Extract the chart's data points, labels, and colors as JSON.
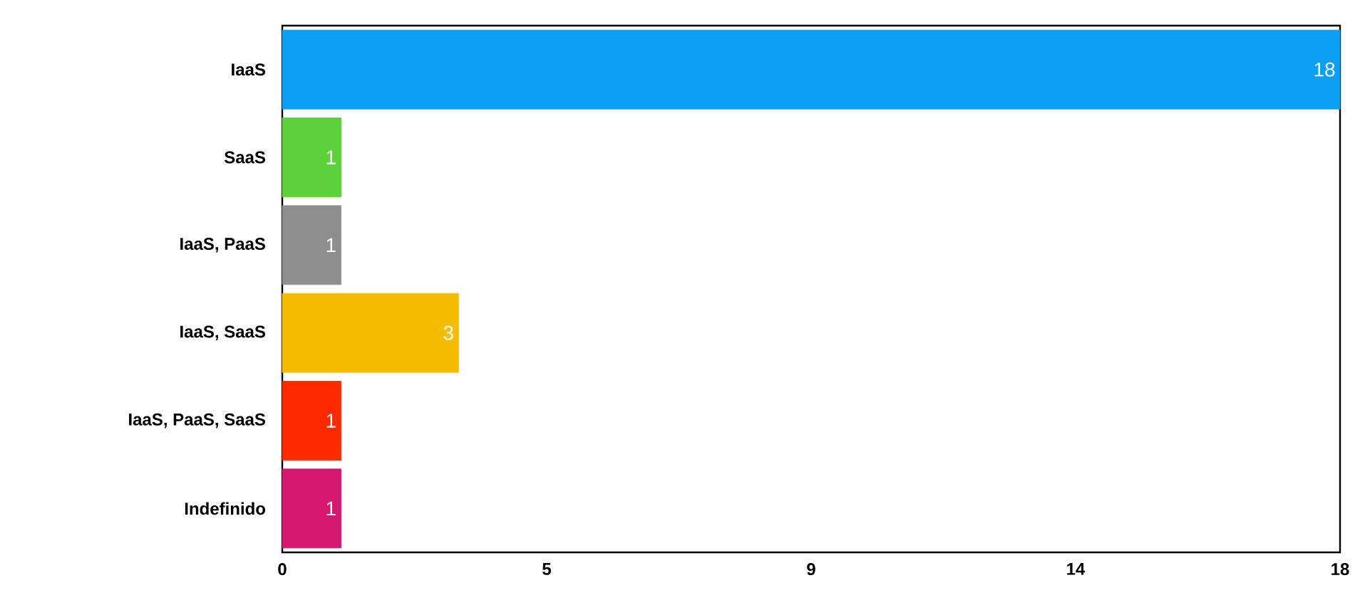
{
  "chart_data": {
    "type": "bar",
    "orientation": "horizontal",
    "categories": [
      "IaaS",
      "SaaS",
      "IaaS, PaaS",
      "IaaS, SaaS",
      "IaaS, PaaS, SaaS",
      "Indefinido"
    ],
    "values": [
      18,
      1,
      1,
      3,
      1,
      1
    ],
    "colors": [
      "#0a9ef5",
      "#5dd13c",
      "#8e8e8e",
      "#f5bd00",
      "#ff2a00",
      "#d4176f"
    ],
    "xlim": [
      0,
      18
    ],
    "xticks": [
      0,
      {
        "value": 4.5,
        "label": "5"
      },
      9,
      {
        "value": 13.5,
        "label": "14"
      },
      18
    ],
    "data_labels": true,
    "grid": false
  }
}
